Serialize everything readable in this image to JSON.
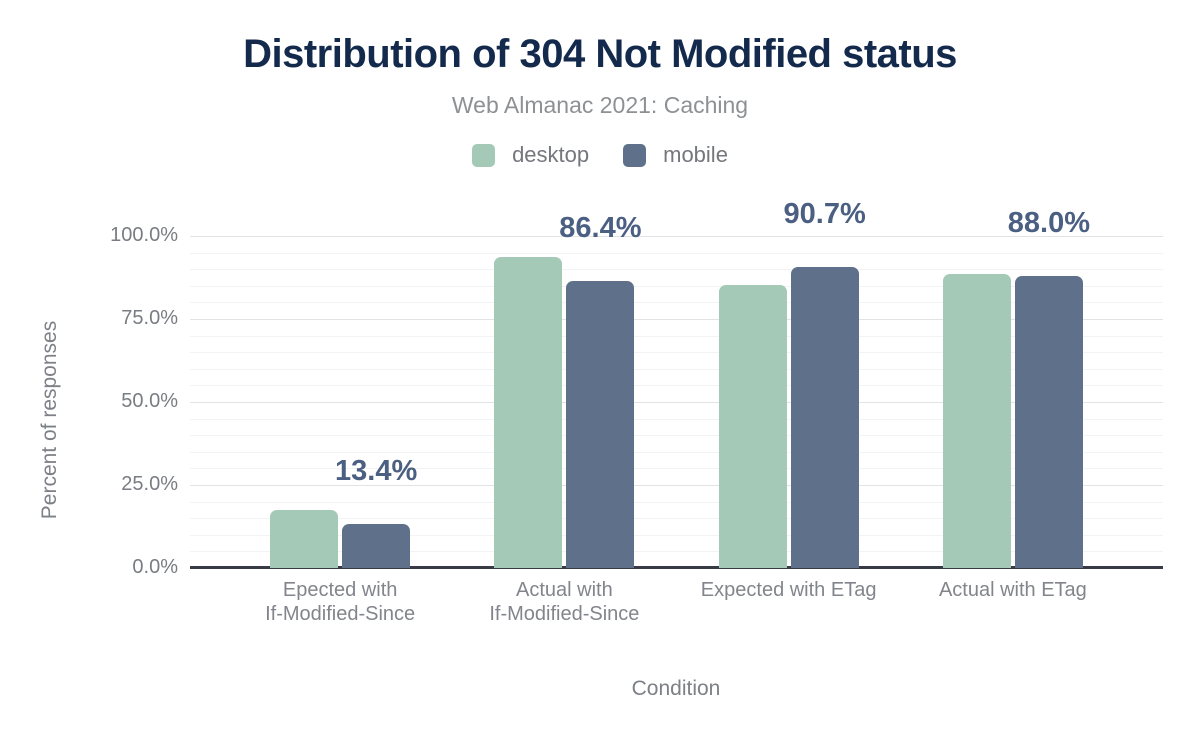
{
  "header": {
    "title": "Distribution of 304 Not Modified status",
    "subtitle": "Web Almanac 2021: Caching"
  },
  "legend": [
    {
      "label": "desktop",
      "color": "#a4c9b6"
    },
    {
      "label": "mobile",
      "color": "#5f718a"
    }
  ],
  "colors": {
    "desktop_bar": "#a4c9b6",
    "mobile_bar": "#5f718a",
    "value_label": "#4b5f82",
    "title": "#142a4d",
    "axis_text": "#797d83",
    "major_gridline": "#e2e3e5",
    "minor_gridline": "#f2f3f4",
    "baseline": "#363b46"
  },
  "chart_data": {
    "type": "bar",
    "title": "Distribution of 304 Not Modified status",
    "subtitle": "Web Almanac 2021: Caching",
    "xlabel": "Condition",
    "ylabel": "Percent of responses",
    "categories": [
      "Epected with If-Modified-Since",
      "Actual with If-Modified-Since",
      "Expected with ETag",
      "Actual with ETag"
    ],
    "category_label_lines": [
      [
        "Epected with",
        "If-Modified-Since"
      ],
      [
        "Actual with",
        "If-Modified-Since"
      ],
      [
        "Expected with ETag"
      ],
      [
        "Actual with ETag"
      ]
    ],
    "series": [
      {
        "name": "desktop",
        "color": "#a4c9b6",
        "values": [
          17.5,
          93.6,
          85.2,
          88.5
        ]
      },
      {
        "name": "mobile",
        "color": "#5f718a",
        "values": [
          13.4,
          86.4,
          90.7,
          88.0
        ]
      }
    ],
    "annotations": {
      "series": "mobile",
      "labels": [
        "13.4%",
        "86.4%",
        "90.7%",
        "88.0%"
      ]
    },
    "ylim": [
      0,
      100
    ],
    "yticks": {
      "values": [
        0,
        25,
        50,
        75,
        100
      ],
      "labels": [
        "0.0%",
        "25.0%",
        "50.0%",
        "75.0%",
        "100.0%"
      ]
    },
    "grid": {
      "major_step": 25,
      "minor_step": 5,
      "grid_on": true
    },
    "legend_position": "top"
  }
}
